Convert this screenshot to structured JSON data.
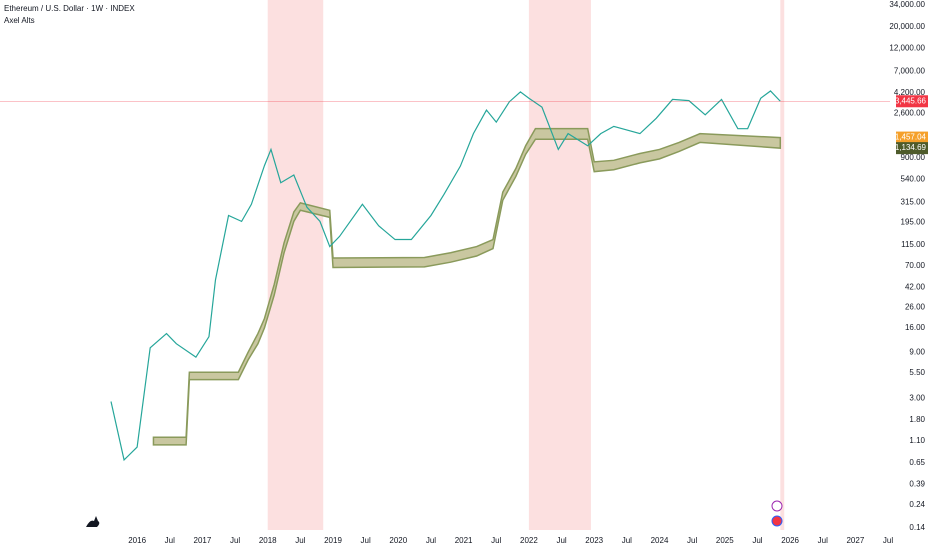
{
  "chart_data": {
    "type": "line",
    "title": "Ethereum / U.S. Dollar · 1W · INDEX",
    "subtitle": "Axel Alts",
    "log_scale": true,
    "grid": false,
    "x": [
      2015.6,
      2015.8,
      2016.0,
      2016.2,
      2016.45,
      2016.6,
      2016.9,
      2017.1,
      2017.2,
      2017.4,
      2017.6,
      2017.75,
      2017.95,
      2018.05,
      2018.2,
      2018.4,
      2018.6,
      2018.8,
      2018.95,
      2019.1,
      2019.45,
      2019.7,
      2019.95,
      2020.2,
      2020.5,
      2020.7,
      2020.95,
      2021.15,
      2021.35,
      2021.5,
      2021.7,
      2021.87,
      2022.0,
      2022.2,
      2022.45,
      2022.6,
      2022.9,
      2023.1,
      2023.3,
      2023.7,
      2023.95,
      2024.2,
      2024.45,
      2024.7,
      2024.95,
      2025.2,
      2025.35,
      2025.55,
      2025.7,
      2025.85
    ],
    "series": [
      {
        "color": "#26a69a",
        "values": [
          2.8,
          0.7,
          0.95,
          10,
          14,
          11,
          8,
          13,
          50,
          230,
          200,
          300,
          750,
          1100,
          500,
          600,
          280,
          200,
          110,
          140,
          300,
          180,
          130,
          130,
          230,
          380,
          740,
          1600,
          2800,
          2100,
          3400,
          4300,
          3700,
          3000,
          1100,
          1600,
          1200,
          1600,
          1900,
          1600,
          2300,
          3600,
          3500,
          2500,
          3600,
          1800,
          1800,
          3700,
          4400,
          3445.66
        ]
      }
    ],
    "band": {
      "color": "#8a9a5b",
      "fill": "#c9c7a0",
      "x": [
        2016.25,
        2016.75,
        2016.8,
        2017.55,
        2017.7,
        2017.85,
        2017.95,
        2018.1,
        2018.25,
        2018.4,
        2018.5,
        2018.95,
        2019.0,
        2020.4,
        2020.8,
        2021.2,
        2021.45,
        2021.6,
        2021.8,
        2021.95,
        2022.1,
        2022.9,
        2023.0,
        2023.3,
        2023.7,
        2024.0,
        2024.3,
        2024.62,
        2025.85
      ],
      "upper": [
        1.2,
        1.2,
        5.6,
        5.6,
        9,
        14,
        20,
        45,
        120,
        250,
        310,
        260,
        84,
        85,
        95,
        110,
        130,
        400,
        700,
        1200,
        1800,
        1800,
        820,
        850,
        1000,
        1100,
        1300,
        1600,
        1457.04
      ],
      "lower": [
        1.0,
        1.0,
        4.7,
        4.7,
        7.5,
        11,
        16,
        35,
        95,
        200,
        260,
        220,
        67,
        68,
        76,
        88,
        105,
        330,
        580,
        980,
        1400,
        1400,
        650,
        680,
        800,
        880,
        1050,
        1300,
        1134.69
      ]
    },
    "shaded_ranges": [
      [
        2018.0,
        2018.85
      ],
      [
        2022.0,
        2022.95
      ],
      [
        2025.85,
        2025.91
      ]
    ],
    "shade_color": "#fbd5d5",
    "last_values": [
      {
        "value": 3445.66,
        "label": "3,445.66",
        "color": "#f23645"
      },
      {
        "value": 1457.04,
        "label": "1,457.04",
        "color": "#f5a02a"
      },
      {
        "value": 1134.69,
        "label": "1,134.69",
        "color": "#4e5b2b"
      }
    ],
    "xlim": [
      2013.9,
      2027.53
    ],
    "ylim": [
      0.133,
      38000
    ],
    "xticks": [
      {
        "value": 2016,
        "label": "2016"
      },
      {
        "value": 2016.5,
        "label": "Jul"
      },
      {
        "value": 2017,
        "label": "2017"
      },
      {
        "value": 2017.5,
        "label": "Jul"
      },
      {
        "value": 2018,
        "label": "2018"
      },
      {
        "value": 2018.5,
        "label": "Jul"
      },
      {
        "value": 2019,
        "label": "2019"
      },
      {
        "value": 2019.5,
        "label": "Jul"
      },
      {
        "value": 2020,
        "label": "2020"
      },
      {
        "value": 2020.5,
        "label": "Jul"
      },
      {
        "value": 2021,
        "label": "2021"
      },
      {
        "value": 2021.5,
        "label": "Jul"
      },
      {
        "value": 2022,
        "label": "2022"
      },
      {
        "value": 2022.5,
        "label": "Jul"
      },
      {
        "value": 2023,
        "label": "2023"
      },
      {
        "value": 2023.5,
        "label": "Jul"
      },
      {
        "value": 2024,
        "label": "2024"
      },
      {
        "value": 2024.5,
        "label": "Jul"
      },
      {
        "value": 2025,
        "label": "2025"
      },
      {
        "value": 2025.5,
        "label": "Jul"
      },
      {
        "value": 2026,
        "label": "2026"
      },
      {
        "value": 2026.5,
        "label": "Jul"
      },
      {
        "value": 2027,
        "label": "2027"
      },
      {
        "value": 2027.5,
        "label": "Jul"
      }
    ],
    "yticks": [
      {
        "value": 34000,
        "label": "34,000.00"
      },
      {
        "value": 20000,
        "label": "20,000.00"
      },
      {
        "value": 12000,
        "label": "12,000.00"
      },
      {
        "value": 7000,
        "label": "7,000.00"
      },
      {
        "value": 4200,
        "label": "4,200.00"
      },
      {
        "value": 2600,
        "label": "2,600.00"
      },
      {
        "value": 900,
        "label": "900.00"
      },
      {
        "value": 540,
        "label": "540.00"
      },
      {
        "value": 315,
        "label": "315.00"
      },
      {
        "value": 195,
        "label": "195.00"
      },
      {
        "value": 115,
        "label": "115.00"
      },
      {
        "value": 70,
        "label": "70.00"
      },
      {
        "value": 42,
        "label": "42.00"
      },
      {
        "value": 26,
        "label": "26.00"
      },
      {
        "value": 16,
        "label": "16.00"
      },
      {
        "value": 9,
        "label": "9.00"
      },
      {
        "value": 5.5,
        "label": "5.50"
      },
      {
        "value": 3,
        "label": "3.00"
      },
      {
        "value": 1.8,
        "label": "1.80"
      },
      {
        "value": 1.1,
        "label": "1.10"
      },
      {
        "value": 0.65,
        "label": "0.65"
      },
      {
        "value": 0.39,
        "label": "0.39"
      },
      {
        "value": 0.24,
        "label": "0.24"
      },
      {
        "value": 0.14,
        "label": "0.14"
      }
    ]
  }
}
